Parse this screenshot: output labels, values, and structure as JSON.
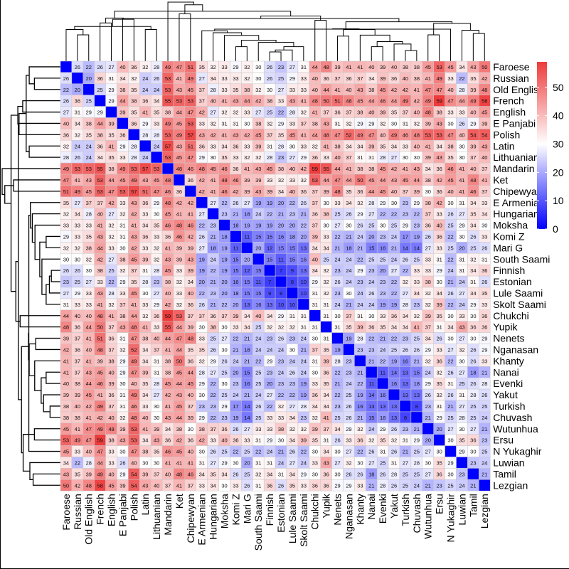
{
  "chart_data": {
    "type": "heatmap",
    "title": "",
    "labels": [
      "Faroese",
      "Russian",
      "Old English",
      "French",
      "English",
      "E Panjabi",
      "Polish",
      "Latin",
      "Lithuanian",
      "Mandarin",
      "Ket",
      "Chipewyan",
      "E Armenian",
      "Hungarian",
      "Moksha",
      "Komi Z",
      "Mari G",
      "South Saami",
      "Finnish",
      "Estonian",
      "Lule Saami",
      "Skolt Saami",
      "Chukchi",
      "Yupik",
      "Nenets",
      "Nganasan",
      "Khanty",
      "Nanai",
      "Evenki",
      "Yakut",
      "Turkish",
      "Chuvash",
      "Wutunhua",
      "Ersu",
      "N Yukaghir",
      "Luwian",
      "Tamil",
      "Lezgian"
    ],
    "values": [
      [
        0,
        26,
        22,
        26,
        27,
        40,
        36,
        32,
        28,
        49,
        47,
        51,
        35,
        32,
        33,
        29,
        32,
        30,
        26,
        23,
        27,
        31,
        44,
        48,
        39,
        41,
        41,
        40,
        39,
        40,
        38,
        38,
        45,
        53,
        45,
        34,
        43,
        50
      ],
      [
        26,
        0,
        20,
        36,
        31,
        34,
        32,
        24,
        26,
        53,
        41,
        49,
        27,
        34,
        33,
        33,
        32,
        30,
        26,
        25,
        29,
        33,
        40,
        36,
        37,
        36,
        37,
        34,
        39,
        36,
        40,
        38,
        41,
        49,
        33,
        22,
        35,
        42
      ],
      [
        22,
        20,
        0,
        25,
        29,
        38,
        35,
        24,
        24,
        53,
        43,
        45,
        37,
        28,
        33,
        35,
        38,
        32,
        30,
        27,
        33,
        33,
        40,
        44,
        41,
        40,
        43,
        38,
        45,
        42,
        42,
        41,
        47,
        47,
        40,
        28,
        39,
        48
      ],
      [
        26,
        36,
        25,
        0,
        29,
        44,
        38,
        36,
        34,
        55,
        53,
        53,
        37,
        40,
        41,
        43,
        44,
        42,
        38,
        33,
        43,
        41,
        48,
        50,
        51,
        48,
        45,
        44,
        46,
        44,
        49,
        42,
        49,
        59,
        47,
        44,
        49,
        58
      ],
      [
        27,
        31,
        29,
        29,
        0,
        39,
        35,
        41,
        35,
        38,
        44,
        47,
        42,
        27,
        32,
        32,
        33,
        27,
        25,
        22,
        28,
        32,
        41,
        37,
        36,
        37,
        38,
        40,
        39,
        35,
        37,
        40,
        48,
        38,
        33,
        33,
        40,
        45
      ],
      [
        40,
        34,
        38,
        44,
        39,
        0,
        36,
        29,
        33,
        49,
        45,
        53,
        33,
        32,
        31,
        31,
        30,
        38,
        32,
        29,
        33,
        37,
        38,
        43,
        31,
        32,
        29,
        29,
        32,
        30,
        31,
        32,
        39,
        43,
        30,
        26,
        29,
        39
      ],
      [
        36,
        32,
        35,
        38,
        35,
        36,
        0,
        28,
        28,
        53,
        49,
        57,
        43,
        42,
        41,
        43,
        42,
        45,
        37,
        35,
        45,
        41,
        44,
        48,
        47,
        52,
        49,
        47,
        40,
        49,
        46,
        48,
        53,
        53,
        47,
        40,
        54,
        54
      ],
      [
        32,
        24,
        24,
        36,
        41,
        29,
        28,
        0,
        24,
        57,
        43,
        51,
        36,
        33,
        34,
        36,
        33,
        39,
        31,
        28,
        30,
        33,
        32,
        41,
        38,
        34,
        34,
        39,
        35,
        34,
        33,
        40,
        41,
        34,
        38,
        30,
        39,
        43
      ],
      [
        28,
        26,
        24,
        34,
        35,
        33,
        28,
        24,
        0,
        53,
        45,
        47,
        29,
        30,
        35,
        33,
        32,
        32,
        28,
        23,
        27,
        29,
        36,
        33,
        40,
        37,
        31,
        31,
        28,
        27,
        30,
        30,
        39,
        43,
        35,
        30,
        37,
        40
      ],
      [
        49,
        53,
        53,
        55,
        38,
        49,
        53,
        57,
        53,
        0,
        48,
        46,
        48,
        45,
        46,
        36,
        41,
        43,
        45,
        38,
        40,
        42,
        59,
        55,
        44,
        41,
        38,
        38,
        45,
        42,
        41,
        43,
        34,
        36,
        46,
        41,
        40,
        37
      ],
      [
        47,
        41,
        43,
        53,
        44,
        45,
        49,
        43,
        45,
        48,
        0,
        36,
        42,
        41,
        48,
        46,
        39,
        39,
        33,
        32,
        33,
        32,
        53,
        44,
        47,
        44,
        50,
        45,
        44,
        43,
        45,
        44,
        38,
        42,
        45,
        41,
        48,
        41
      ],
      [
        51,
        49,
        45,
        53,
        47,
        53,
        57,
        51,
        47,
        46,
        36,
        0,
        42,
        41,
        46,
        42,
        39,
        43,
        39,
        34,
        40,
        36,
        37,
        39,
        48,
        35,
        36,
        44,
        45,
        40,
        37,
        39,
        30,
        36,
        40,
        41,
        46,
        37
      ],
      [
        35,
        27,
        37,
        37,
        42,
        33,
        43,
        36,
        29,
        48,
        42,
        42,
        0,
        27,
        22,
        26,
        27,
        19,
        19,
        20,
        22,
        26,
        37,
        30,
        33,
        34,
        32,
        28,
        29,
        30,
        23,
        29,
        38,
        42,
        30,
        31,
        34,
        33
      ],
      [
        32,
        34,
        28,
        40,
        27,
        32,
        42,
        33,
        30,
        45,
        41,
        41,
        27,
        0,
        23,
        21,
        18,
        24,
        22,
        21,
        23,
        21,
        36,
        38,
        25,
        26,
        29,
        27,
        22,
        22,
        23,
        22,
        37,
        33,
        26,
        27,
        35,
        34
      ],
      [
        33,
        33,
        33,
        41,
        32,
        31,
        41,
        34,
        35,
        46,
        48,
        46,
        22,
        23,
        0,
        18,
        19,
        19,
        19,
        20,
        20,
        22,
        37,
        30,
        27,
        30,
        26,
        25,
        30,
        25,
        29,
        23,
        36,
        40,
        25,
        29,
        34,
        30
      ],
      [
        29,
        33,
        35,
        43,
        32,
        31,
        43,
        36,
        33,
        36,
        46,
        42,
        26,
        21,
        18,
        0,
        11,
        15,
        15,
        16,
        18,
        20,
        39,
        33,
        22,
        21,
        24,
        20,
        23,
        24,
        17,
        19,
        26,
        36,
        22,
        30,
        26,
        33
      ],
      [
        32,
        32,
        38,
        44,
        33,
        30,
        42,
        33,
        32,
        41,
        39,
        39,
        27,
        18,
        19,
        11,
        0,
        20,
        12,
        15,
        15,
        13,
        34,
        34,
        21,
        18,
        21,
        15,
        16,
        21,
        14,
        14,
        27,
        33,
        25,
        20,
        25,
        26
      ],
      [
        30,
        30,
        32,
        42,
        27,
        38,
        45,
        39,
        32,
        43,
        39,
        43,
        19,
        24,
        19,
        15,
        20,
        0,
        15,
        11,
        15,
        16,
        40,
        25,
        24,
        24,
        22,
        25,
        25,
        24,
        26,
        25,
        33,
        31,
        22,
        31,
        32,
        31
      ],
      [
        26,
        26,
        30,
        38,
        25,
        32,
        37,
        31,
        28,
        45,
        33,
        39,
        19,
        22,
        19,
        15,
        12,
        15,
        0,
        7,
        9,
        13,
        34,
        32,
        23,
        24,
        29,
        23,
        20,
        27,
        22,
        33,
        33,
        29,
        24,
        31,
        34,
        36
      ],
      [
        23,
        25,
        27,
        33,
        22,
        29,
        35,
        28,
        23,
        38,
        32,
        34,
        20,
        21,
        20,
        16,
        15,
        11,
        7,
        0,
        8,
        10,
        29,
        32,
        26,
        24,
        23,
        24,
        23,
        22,
        32,
        33,
        38,
        30,
        21,
        24,
        31,
        26
      ],
      [
        27,
        29,
        33,
        43,
        28,
        33,
        45,
        30,
        27,
        40,
        33,
        40,
        22,
        23,
        20,
        18,
        15,
        15,
        9,
        8,
        0,
        10,
        31,
        32,
        23,
        30,
        24,
        26,
        23,
        22,
        27,
        34,
        32,
        34,
        26,
        27,
        34,
        35
      ],
      [
        31,
        33,
        33,
        41,
        32,
        37,
        41,
        33,
        29,
        42,
        32,
        36,
        26,
        21,
        22,
        20,
        13,
        16,
        13,
        10,
        10,
        0,
        31,
        31,
        24,
        21,
        24,
        24,
        19,
        19,
        28,
        23,
        32,
        39,
        22,
        24,
        29,
        33
      ],
      [
        44,
        40,
        40,
        48,
        41,
        38,
        44,
        32,
        36,
        59,
        53,
        37,
        37,
        36,
        37,
        39,
        34,
        40,
        34,
        29,
        31,
        31,
        0,
        31,
        30,
        37,
        31,
        30,
        33,
        36,
        34,
        32,
        39,
        35,
        30,
        33,
        30,
        36
      ],
      [
        48,
        36,
        44,
        50,
        37,
        43,
        48,
        41,
        33,
        55,
        44,
        39,
        30,
        38,
        30,
        33,
        34,
        25,
        32,
        32,
        32,
        31,
        31,
        0,
        31,
        35,
        39,
        36,
        35,
        34,
        34,
        41,
        37,
        31,
        34,
        43,
        36,
        36
      ],
      [
        39,
        37,
        41,
        51,
        36,
        31,
        47,
        38,
        40,
        44,
        47,
        48,
        33,
        25,
        27,
        22,
        21,
        24,
        23,
        26,
        23,
        24,
        30,
        31,
        0,
        19,
        28,
        22,
        21,
        22,
        23,
        25,
        34,
        26,
        30,
        27,
        30,
        29
      ],
      [
        42,
        36,
        40,
        48,
        37,
        32,
        52,
        34,
        37,
        41,
        44,
        35,
        35,
        26,
        30,
        21,
        18,
        24,
        24,
        24,
        30,
        21,
        37,
        35,
        19,
        0,
        23,
        23,
        24,
        25,
        26,
        26,
        29,
        33,
        27,
        32,
        26,
        29
      ],
      [
        41,
        37,
        41,
        39,
        38,
        29,
        49,
        34,
        31,
        38,
        50,
        36,
        32,
        29,
        26,
        24,
        21,
        22,
        29,
        23,
        24,
        24,
        31,
        39,
        28,
        23,
        0,
        21,
        22,
        19,
        16,
        21,
        32,
        36,
        22,
        30,
        26,
        33
      ],
      [
        41,
        37,
        43,
        45,
        40,
        29,
        47,
        39,
        31,
        38,
        45,
        44,
        28,
        27,
        25,
        20,
        15,
        25,
        23,
        24,
        26,
        24,
        30,
        36,
        22,
        23,
        21,
        0,
        11,
        14,
        13,
        15,
        24,
        32,
        26,
        27,
        18,
        21
      ],
      [
        40,
        38,
        44,
        46,
        39,
        30,
        40,
        35,
        28,
        45,
        44,
        45,
        29,
        22,
        30,
        23,
        16,
        25,
        20,
        23,
        23,
        19,
        33,
        35,
        21,
        24,
        22,
        11,
        0,
        16,
        13,
        18,
        29,
        35,
        31,
        25,
        26,
        28
      ],
      [
        39,
        39,
        45,
        41,
        36,
        31,
        49,
        34,
        27,
        42,
        43,
        40,
        30,
        22,
        25,
        24,
        21,
        24,
        27,
        22,
        22,
        19,
        36,
        34,
        22,
        25,
        19,
        14,
        16,
        0,
        13,
        13,
        26,
        32,
        26,
        31,
        28,
        26
      ],
      [
        38,
        40,
        42,
        49,
        37,
        31,
        46,
        33,
        30,
        41,
        45,
        37,
        23,
        23,
        29,
        17,
        14,
        26,
        22,
        32,
        27,
        28,
        34,
        34,
        23,
        26,
        16,
        13,
        13,
        13,
        0,
        8,
        23,
        31,
        21,
        27,
        25,
        25
      ],
      [
        38,
        38,
        41,
        42,
        40,
        32,
        48,
        40,
        30,
        43,
        44,
        39,
        29,
        22,
        23,
        19,
        14,
        25,
        33,
        33,
        34,
        23,
        32,
        41,
        25,
        26,
        21,
        15,
        18,
        13,
        8,
        0,
        21,
        29,
        25,
        28,
        25,
        24
      ],
      [
        45,
        41,
        47,
        49,
        48,
        39,
        53,
        41,
        39,
        34,
        38,
        30,
        38,
        37,
        36,
        26,
        27,
        33,
        33,
        38,
        32,
        32,
        39,
        37,
        34,
        29,
        32,
        24,
        29,
        26,
        23,
        21,
        0,
        20,
        27,
        30,
        27,
        21
      ],
      [
        53,
        49,
        47,
        59,
        38,
        43,
        53,
        34,
        43,
        36,
        42,
        36,
        42,
        33,
        40,
        36,
        33,
        31,
        29,
        30,
        34,
        39,
        35,
        31,
        26,
        33,
        36,
        32,
        35,
        32,
        31,
        29,
        20,
        0,
        30,
        35,
        36,
        23
      ],
      [
        45,
        33,
        40,
        47,
        33,
        30,
        47,
        38,
        35,
        46,
        45,
        40,
        30,
        26,
        25,
        22,
        25,
        22,
        24,
        21,
        26,
        22,
        30,
        34,
        30,
        27,
        22,
        26,
        31,
        26,
        21,
        25,
        27,
        30,
        0,
        29,
        30,
        25
      ],
      [
        34,
        22,
        28,
        44,
        33,
        26,
        40,
        30,
        30,
        41,
        41,
        41,
        31,
        27,
        29,
        30,
        20,
        31,
        31,
        24,
        27,
        24,
        33,
        43,
        27,
        32,
        30,
        27,
        25,
        31,
        27,
        28,
        30,
        35,
        29,
        0,
        23,
        24
      ],
      [
        43,
        35,
        39,
        49,
        40,
        29,
        54,
        39,
        37,
        40,
        48,
        46,
        34,
        35,
        34,
        26,
        25,
        32,
        34,
        31,
        34,
        29,
        30,
        36,
        30,
        26,
        26,
        18,
        26,
        28,
        25,
        25,
        27,
        36,
        30,
        23,
        0,
        21
      ],
      [
        50,
        42,
        48,
        58,
        45,
        39,
        54,
        43,
        40,
        37,
        41,
        37,
        33,
        34,
        30,
        33,
        26,
        31,
        36,
        26,
        35,
        33,
        36,
        36,
        29,
        29,
        33,
        21,
        28,
        26,
        25,
        24,
        21,
        23,
        25,
        24,
        21,
        0
      ]
    ],
    "xlabels": [
      "Faroese",
      "Russian",
      "Old English",
      "French",
      "English",
      "E Panjabi",
      "Polish",
      "Latin",
      "Lithuanian",
      "Mandarin",
      "Ket",
      "Chipewyan",
      "E Armenian",
      "Hungarian",
      "Moksha",
      "Komi Z",
      "Mari G",
      "South Saami",
      "Finnish",
      "Estonian",
      "Lule Saami",
      "Skolt Saami",
      "Chukchi",
      "Yupik",
      "Nenets",
      "Nganasan",
      "Khanty",
      "Nanai",
      "Evenki",
      "Yakut",
      "Turkish",
      "Chuvash",
      "Wutunhua",
      "Ersu",
      "N Yukaghir",
      "Luwian",
      "Tamil",
      "Lezgian"
    ],
    "color_scale": {
      "low": "#0000ff",
      "mid": "#ffffff",
      "high": "#ee3b3b",
      "mid_value": 30,
      "range": [
        0,
        59
      ],
      "ticks": [
        0,
        10,
        20,
        30,
        40,
        50
      ]
    },
    "cell_values_shown": true,
    "dendrograms": "top and left",
    "legend": "right"
  }
}
